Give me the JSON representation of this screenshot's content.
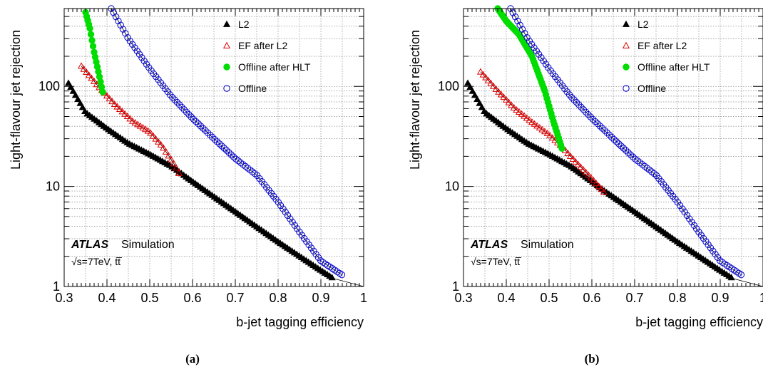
{
  "chart_data": [
    {
      "type": "scatter",
      "panel_label": "(a)",
      "xlabel": "b-jet tagging efficiency",
      "ylabel": "Light-flavour jet rejection",
      "xlim": [
        0.3,
        1.0
      ],
      "ylim": [
        1,
        600
      ],
      "yscale": "log",
      "grid": true,
      "legend_position": "top-right",
      "x_ticks": [
        0.3,
        0.4,
        0.5,
        0.6,
        0.7,
        0.8,
        0.9,
        1.0
      ],
      "x_tick_labels": [
        "0.3",
        "0.4",
        "0.5",
        "0.6",
        "0.7",
        "0.8",
        "0.9",
        "1"
      ],
      "y_ticks": [
        1,
        10,
        100
      ],
      "y_tick_labels": [
        "1",
        "10",
        "100"
      ],
      "annotation": {
        "atlas": "ATLAS",
        "simulation": "Simulation",
        "energy": "√s=7TeV, tt̅"
      },
      "series": [
        {
          "name": "L2",
          "marker": "triangle-filled",
          "color": "#000000",
          "x": [
            0.31,
            0.35,
            0.4,
            0.45,
            0.5,
            0.55,
            0.6,
            0.7,
            0.8,
            0.9,
            0.93
          ],
          "y": [
            108,
            55,
            38,
            27,
            21,
            16,
            11.2,
            5.6,
            2.8,
            1.45,
            1.2
          ]
        },
        {
          "name": "EF after L2",
          "marker": "triangle-open",
          "color": "#dd0000",
          "x": [
            0.34,
            0.38,
            0.42,
            0.46,
            0.5,
            0.53,
            0.56,
            0.57
          ],
          "y": [
            160,
            100,
            65,
            45,
            35,
            25,
            16,
            13
          ]
        },
        {
          "name": "Offline after HLT",
          "marker": "circle-filled",
          "color": "#00dd00",
          "x": [
            0.35,
            0.36,
            0.37,
            0.38,
            0.39
          ],
          "y": [
            550,
            380,
            220,
            140,
            88
          ]
        },
        {
          "name": "Offline",
          "marker": "circle-open",
          "color": "#0000cc",
          "x": [
            0.41,
            0.45,
            0.5,
            0.55,
            0.6,
            0.65,
            0.7,
            0.75,
            0.8,
            0.85,
            0.9,
            0.95
          ],
          "y": [
            600,
            300,
            150,
            80,
            48,
            30,
            19,
            13,
            7,
            3.5,
            1.8,
            1.3
          ]
        }
      ]
    },
    {
      "type": "scatter",
      "panel_label": "(b)",
      "xlabel": "b-jet tagging efficiency",
      "ylabel": "Light-flavour jet rejection",
      "xlim": [
        0.3,
        1.0
      ],
      "ylim": [
        1,
        600
      ],
      "yscale": "log",
      "grid": true,
      "legend_position": "top-right",
      "x_ticks": [
        0.3,
        0.4,
        0.5,
        0.6,
        0.7,
        0.8,
        0.9,
        1.0
      ],
      "x_tick_labels": [
        "0.3",
        "0.4",
        "0.5",
        "0.6",
        "0.7",
        "0.8",
        "0.9",
        "1"
      ],
      "y_ticks": [
        1,
        10,
        100
      ],
      "y_tick_labels": [
        "1",
        "10",
        "100"
      ],
      "annotation": {
        "atlas": "ATLAS",
        "simulation": "Simulation",
        "energy": "√s=7TeV, tt̅"
      },
      "series": [
        {
          "name": "L2",
          "marker": "triangle-filled",
          "color": "#000000",
          "x": [
            0.31,
            0.35,
            0.4,
            0.45,
            0.5,
            0.55,
            0.6,
            0.63,
            0.7,
            0.8,
            0.9,
            0.93
          ],
          "y": [
            108,
            55,
            38,
            27,
            21,
            16,
            11.2,
            9,
            5.6,
            2.8,
            1.45,
            1.2
          ]
        },
        {
          "name": "EF after L2",
          "marker": "triangle-open",
          "color": "#dd0000",
          "x": [
            0.34,
            0.38,
            0.42,
            0.46,
            0.5,
            0.53,
            0.56,
            0.6,
            0.63
          ],
          "y": [
            140,
            90,
            60,
            44,
            33,
            25,
            18,
            12,
            8.6
          ]
        },
        {
          "name": "Offline after HLT",
          "marker": "circle-filled",
          "color": "#00dd00",
          "x": [
            0.38,
            0.4,
            0.43,
            0.46,
            0.49,
            0.51,
            0.53
          ],
          "y": [
            600,
            450,
            330,
            200,
            90,
            45,
            24
          ]
        },
        {
          "name": "Offline",
          "marker": "circle-open",
          "color": "#0000cc",
          "x": [
            0.41,
            0.45,
            0.5,
            0.55,
            0.6,
            0.65,
            0.7,
            0.75,
            0.8,
            0.85,
            0.9,
            0.95
          ],
          "y": [
            600,
            300,
            150,
            80,
            48,
            30,
            19,
            13,
            7,
            3.5,
            1.8,
            1.3
          ]
        }
      ]
    }
  ]
}
